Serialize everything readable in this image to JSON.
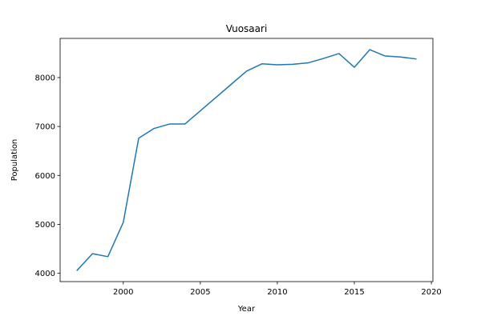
{
  "chart_data": {
    "type": "line",
    "title": "Vuosaari",
    "xlabel": "Year",
    "ylabel": "Population",
    "xlim": [
      1995.9,
      2020.1
    ],
    "ylim": [
      3830,
      8800
    ],
    "x_ticks": [
      2000,
      2005,
      2010,
      2015,
      2020
    ],
    "y_ticks": [
      4000,
      5000,
      6000,
      7000,
      8000
    ],
    "x_tick_labels": [
      "2000",
      "2005",
      "2010",
      "2015",
      "2020"
    ],
    "y_tick_labels": [
      "4000",
      "5000",
      "6000",
      "7000",
      "8000"
    ],
    "grid": false,
    "line_color": "#1f77b4",
    "series": [
      {
        "x": [
          1997,
          1998,
          1999,
          2000,
          2001,
          2002,
          2003,
          2004,
          2005,
          2006,
          2007,
          2008,
          2009,
          2010,
          2011,
          2012,
          2013,
          2014,
          2015,
          2016,
          2017,
          2018,
          2019
        ],
        "values": [
          4060,
          4400,
          4340,
          5040,
          6760,
          6960,
          7050,
          7050,
          7320,
          7590,
          7860,
          8130,
          8280,
          8260,
          8270,
          8300,
          8390,
          8490,
          8210,
          8570,
          8440,
          8420,
          8380
        ]
      }
    ]
  }
}
